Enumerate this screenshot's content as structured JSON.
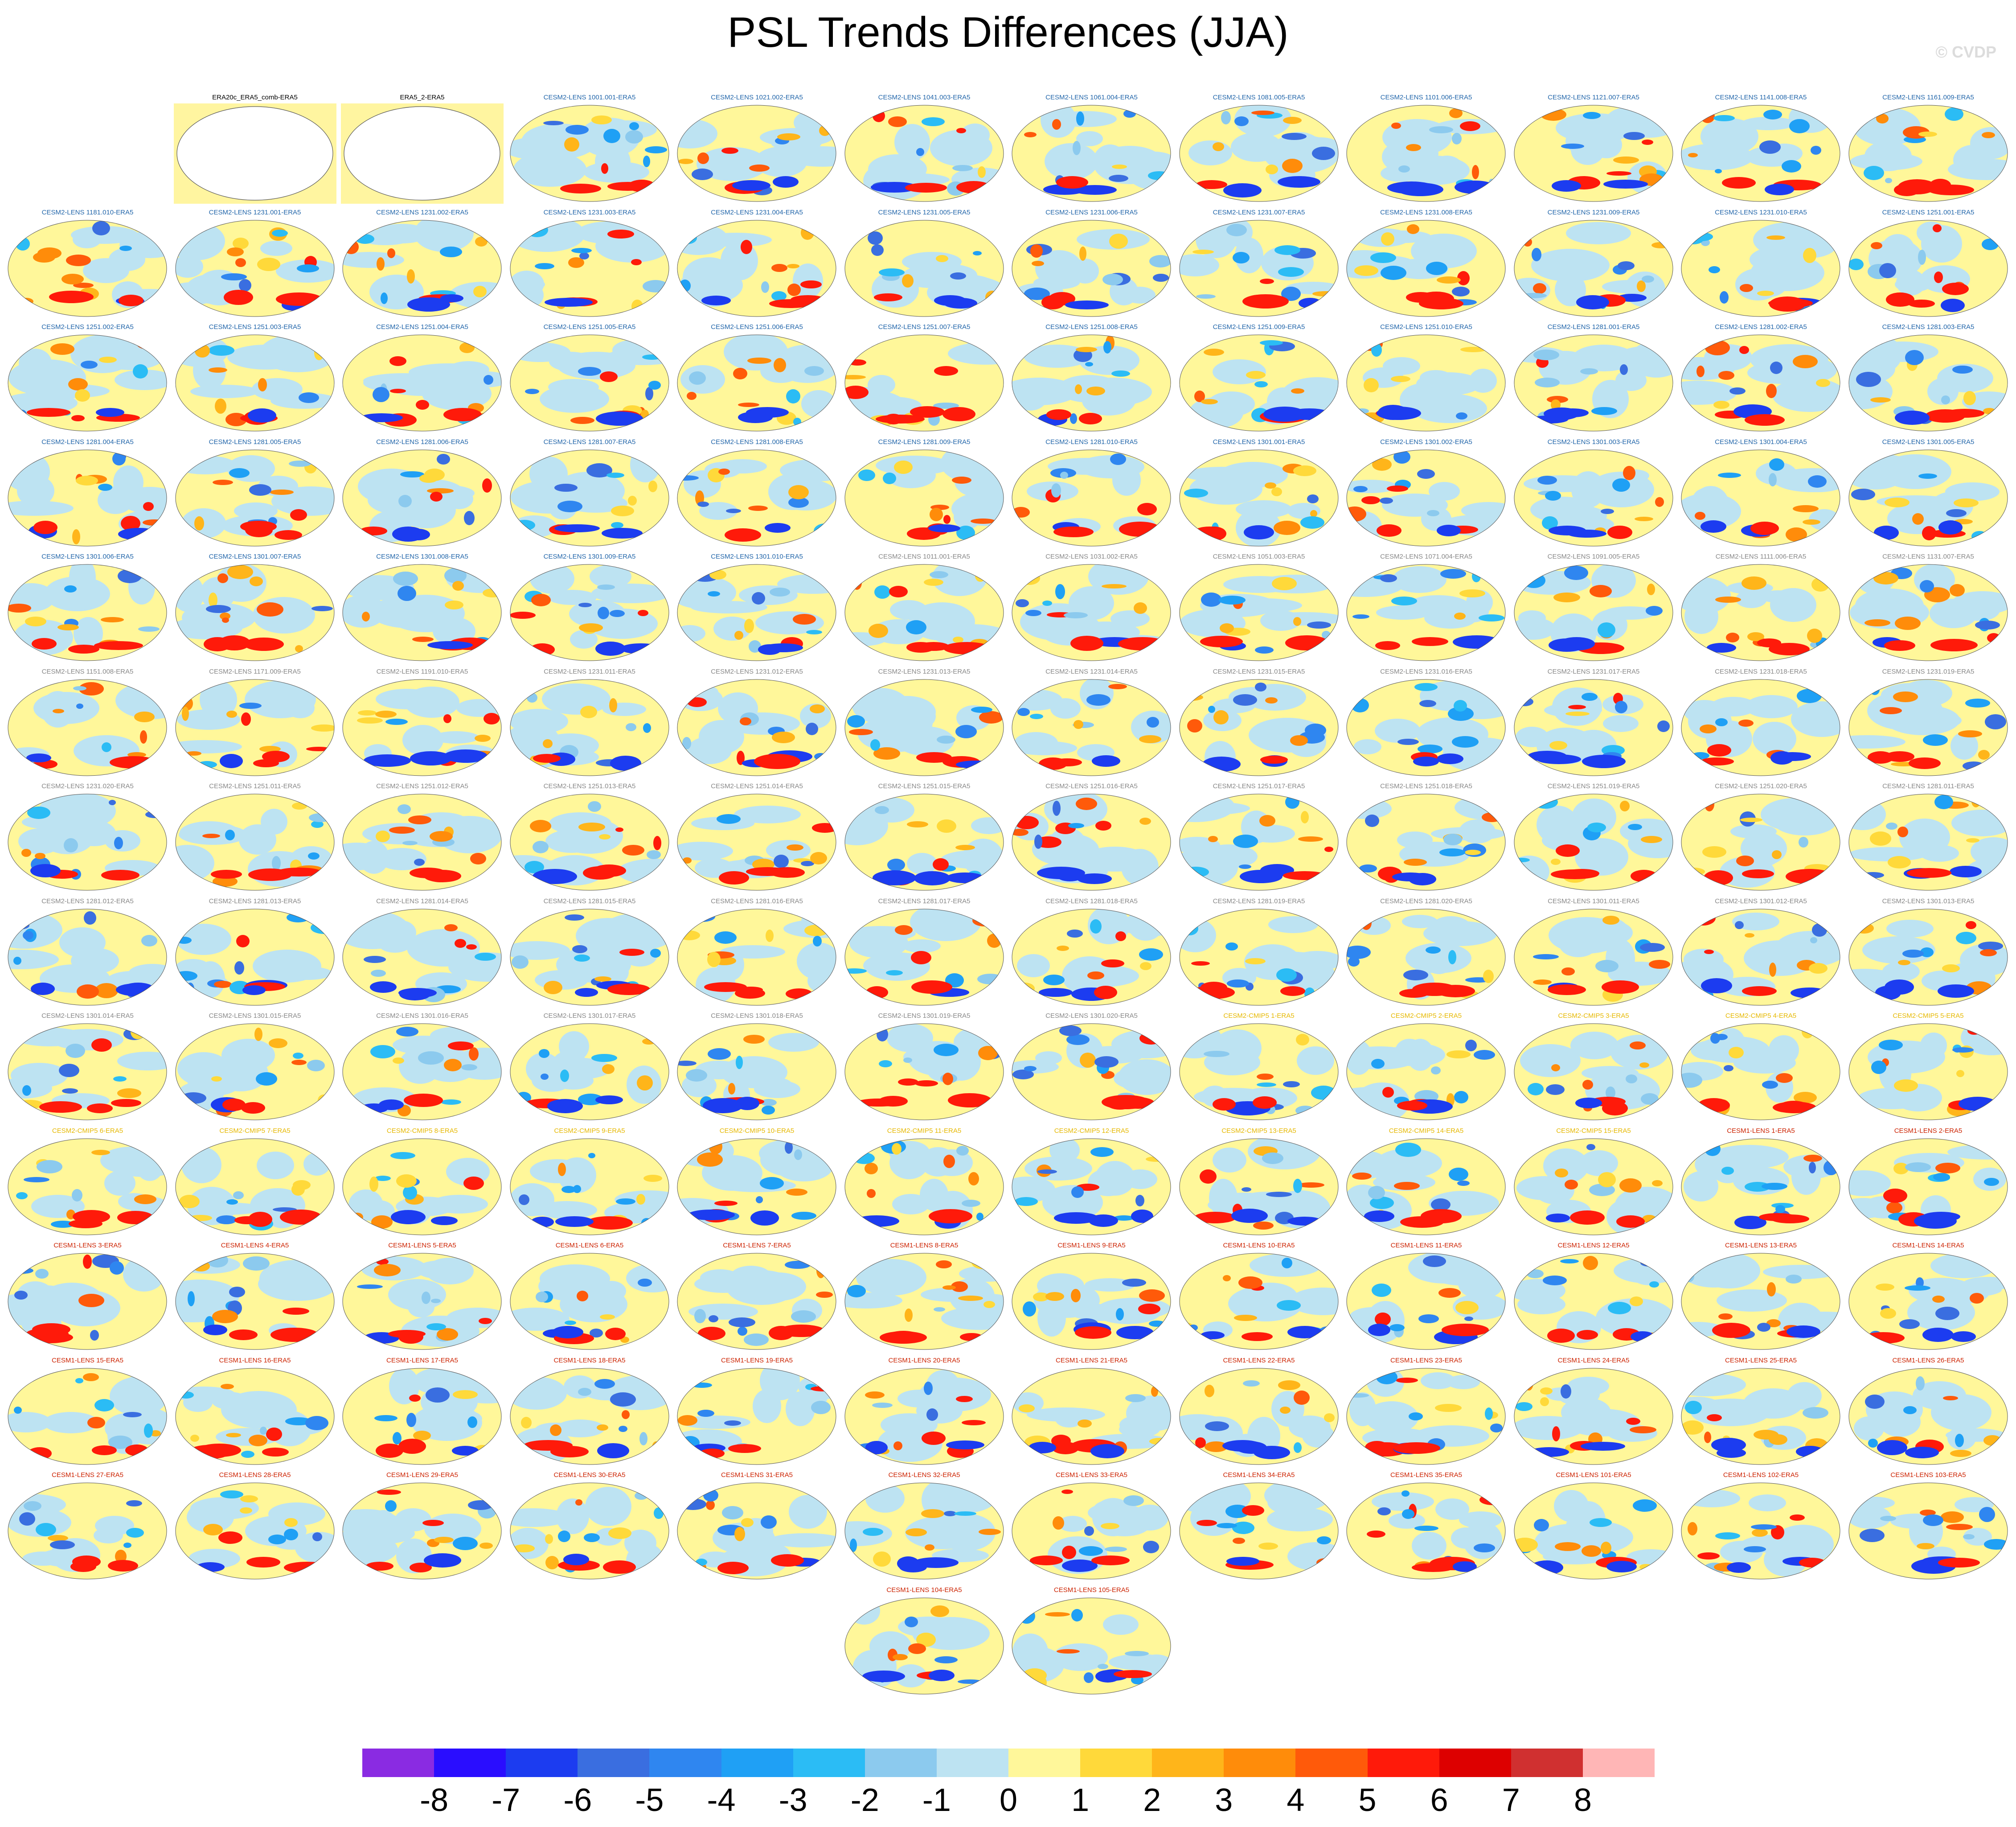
{
  "title": "PSL Trends Differences (JJA)",
  "copyright": "© CVDP",
  "colors": {
    "title_blue": "#2266aa",
    "title_gray": "#888888",
    "title_gold": "#e6b800",
    "title_red": "#cc2200",
    "title_black": "#000000",
    "obs_fill": "#fff5a0"
  },
  "panels": [
    {
      "label": "ERA20c_ERA5_comb-ERA5",
      "type": "obs",
      "color": "title_black"
    },
    {
      "label": "ERA5_2-ERA5",
      "type": "obs",
      "color": "title_black"
    },
    {
      "label": "CESM2-LENS 1001.001-ERA5",
      "type": "model",
      "color": "title_blue"
    },
    {
      "label": "CESM2-LENS 1021.002-ERA5",
      "type": "model",
      "color": "title_blue"
    },
    {
      "label": "CESM2-LENS 1041.003-ERA5",
      "type": "model",
      "color": "title_blue"
    },
    {
      "label": "CESM2-LENS 1061.004-ERA5",
      "type": "model",
      "color": "title_blue"
    },
    {
      "label": "CESM2-LENS 1081.005-ERA5",
      "type": "model",
      "color": "title_blue"
    },
    {
      "label": "CESM2-LENS 1101.006-ERA5",
      "type": "model",
      "color": "title_blue"
    },
    {
      "label": "CESM2-LENS 1121.007-ERA5",
      "type": "model",
      "color": "title_blue"
    },
    {
      "label": "CESM2-LENS 1141.008-ERA5",
      "type": "model",
      "color": "title_blue"
    },
    {
      "label": "CESM2-LENS 1161.009-ERA5",
      "type": "model",
      "color": "title_blue"
    },
    {
      "label": "CESM2-LENS 1181.010-ERA5",
      "type": "model",
      "color": "title_blue"
    },
    {
      "label": "CESM2-LENS 1231.001-ERA5",
      "type": "model",
      "color": "title_blue"
    },
    {
      "label": "CESM2-LENS 1231.002-ERA5",
      "type": "model",
      "color": "title_blue"
    },
    {
      "label": "CESM2-LENS 1231.003-ERA5",
      "type": "model",
      "color": "title_blue"
    },
    {
      "label": "CESM2-LENS 1231.004-ERA5",
      "type": "model",
      "color": "title_blue"
    },
    {
      "label": "CESM2-LENS 1231.005-ERA5",
      "type": "model",
      "color": "title_blue"
    },
    {
      "label": "CESM2-LENS 1231.006-ERA5",
      "type": "model",
      "color": "title_blue"
    },
    {
      "label": "CESM2-LENS 1231.007-ERA5",
      "type": "model",
      "color": "title_blue"
    },
    {
      "label": "CESM2-LENS 1231.008-ERA5",
      "type": "model",
      "color": "title_blue"
    },
    {
      "label": "CESM2-LENS 1231.009-ERA5",
      "type": "model",
      "color": "title_blue"
    },
    {
      "label": "CESM2-LENS 1231.010-ERA5",
      "type": "model",
      "color": "title_blue"
    },
    {
      "label": "CESM2-LENS 1251.001-ERA5",
      "type": "model",
      "color": "title_blue"
    },
    {
      "label": "CESM2-LENS 1251.002-ERA5",
      "type": "model",
      "color": "title_blue"
    },
    {
      "label": "CESM2-LENS 1251.003-ERA5",
      "type": "model",
      "color": "title_blue"
    },
    {
      "label": "CESM2-LENS 1251.004-ERA5",
      "type": "model",
      "color": "title_blue"
    },
    {
      "label": "CESM2-LENS 1251.005-ERA5",
      "type": "model",
      "color": "title_blue"
    },
    {
      "label": "CESM2-LENS 1251.006-ERA5",
      "type": "model",
      "color": "title_blue"
    },
    {
      "label": "CESM2-LENS 1251.007-ERA5",
      "type": "model",
      "color": "title_blue"
    },
    {
      "label": "CESM2-LENS 1251.008-ERA5",
      "type": "model",
      "color": "title_blue"
    },
    {
      "label": "CESM2-LENS 1251.009-ERA5",
      "type": "model",
      "color": "title_blue"
    },
    {
      "label": "CESM2-LENS 1251.010-ERA5",
      "type": "model",
      "color": "title_blue"
    },
    {
      "label": "CESM2-LENS 1281.001-ERA5",
      "type": "model",
      "color": "title_blue"
    },
    {
      "label": "CESM2-LENS 1281.002-ERA5",
      "type": "model",
      "color": "title_blue"
    },
    {
      "label": "CESM2-LENS 1281.003-ERA5",
      "type": "model",
      "color": "title_blue"
    },
    {
      "label": "CESM2-LENS 1281.004-ERA5",
      "type": "model",
      "color": "title_blue"
    },
    {
      "label": "CESM2-LENS 1281.005-ERA5",
      "type": "model",
      "color": "title_blue"
    },
    {
      "label": "CESM2-LENS 1281.006-ERA5",
      "type": "model",
      "color": "title_blue"
    },
    {
      "label": "CESM2-LENS 1281.007-ERA5",
      "type": "model",
      "color": "title_blue"
    },
    {
      "label": "CESM2-LENS 1281.008-ERA5",
      "type": "model",
      "color": "title_blue"
    },
    {
      "label": "CESM2-LENS 1281.009-ERA5",
      "type": "model",
      "color": "title_blue"
    },
    {
      "label": "CESM2-LENS 1281.010-ERA5",
      "type": "model",
      "color": "title_blue"
    },
    {
      "label": "CESM2-LENS 1301.001-ERA5",
      "type": "model",
      "color": "title_blue"
    },
    {
      "label": "CESM2-LENS 1301.002-ERA5",
      "type": "model",
      "color": "title_blue"
    },
    {
      "label": "CESM2-LENS 1301.003-ERA5",
      "type": "model",
      "color": "title_blue"
    },
    {
      "label": "CESM2-LENS 1301.004-ERA5",
      "type": "model",
      "color": "title_blue"
    },
    {
      "label": "CESM2-LENS 1301.005-ERA5",
      "type": "model",
      "color": "title_blue"
    },
    {
      "label": "CESM2-LENS 1301.006-ERA5",
      "type": "model",
      "color": "title_blue"
    },
    {
      "label": "CESM2-LENS 1301.007-ERA5",
      "type": "model",
      "color": "title_blue"
    },
    {
      "label": "CESM2-LENS 1301.008-ERA5",
      "type": "model",
      "color": "title_blue"
    },
    {
      "label": "CESM2-LENS 1301.009-ERA5",
      "type": "model",
      "color": "title_blue"
    },
    {
      "label": "CESM2-LENS 1301.010-ERA5",
      "type": "model",
      "color": "title_blue"
    },
    {
      "label": "CESM2-LENS 1011.001-ERA5",
      "type": "model",
      "color": "title_gray"
    },
    {
      "label": "CESM2-LENS 1031.002-ERA5",
      "type": "model",
      "color": "title_gray"
    },
    {
      "label": "CESM2-LENS 1051.003-ERA5",
      "type": "model",
      "color": "title_gray"
    },
    {
      "label": "CESM2-LENS 1071.004-ERA5",
      "type": "model",
      "color": "title_gray"
    },
    {
      "label": "CESM2-LENS 1091.005-ERA5",
      "type": "model",
      "color": "title_gray"
    },
    {
      "label": "CESM2-LENS 1111.006-ERA5",
      "type": "model",
      "color": "title_gray"
    },
    {
      "label": "CESM2-LENS 1131.007-ERA5",
      "type": "model",
      "color": "title_gray"
    },
    {
      "label": "CESM2-LENS 1151.008-ERA5",
      "type": "model",
      "color": "title_gray"
    },
    {
      "label": "CESM2-LENS 1171.009-ERA5",
      "type": "model",
      "color": "title_gray"
    },
    {
      "label": "CESM2-LENS 1191.010-ERA5",
      "type": "model",
      "color": "title_gray"
    },
    {
      "label": "CESM2-LENS 1231.011-ERA5",
      "type": "model",
      "color": "title_gray"
    },
    {
      "label": "CESM2-LENS 1231.012-ERA5",
      "type": "model",
      "color": "title_gray"
    },
    {
      "label": "CESM2-LENS 1231.013-ERA5",
      "type": "model",
      "color": "title_gray"
    },
    {
      "label": "CESM2-LENS 1231.014-ERA5",
      "type": "model",
      "color": "title_gray"
    },
    {
      "label": "CESM2-LENS 1231.015-ERA5",
      "type": "model",
      "color": "title_gray"
    },
    {
      "label": "CESM2-LENS 1231.016-ERA5",
      "type": "model",
      "color": "title_gray"
    },
    {
      "label": "CESM2-LENS 1231.017-ERA5",
      "type": "model",
      "color": "title_gray"
    },
    {
      "label": "CESM2-LENS 1231.018-ERA5",
      "type": "model",
      "color": "title_gray"
    },
    {
      "label": "CESM2-LENS 1231.019-ERA5",
      "type": "model",
      "color": "title_gray"
    },
    {
      "label": "CESM2-LENS 1231.020-ERA5",
      "type": "model",
      "color": "title_gray"
    },
    {
      "label": "CESM2-LENS 1251.011-ERA5",
      "type": "model",
      "color": "title_gray"
    },
    {
      "label": "CESM2-LENS 1251.012-ERA5",
      "type": "model",
      "color": "title_gray"
    },
    {
      "label": "CESM2-LENS 1251.013-ERA5",
      "type": "model",
      "color": "title_gray"
    },
    {
      "label": "CESM2-LENS 1251.014-ERA5",
      "type": "model",
      "color": "title_gray"
    },
    {
      "label": "CESM2-LENS 1251.015-ERA5",
      "type": "model",
      "color": "title_gray"
    },
    {
      "label": "CESM2-LENS 1251.016-ERA5",
      "type": "model",
      "color": "title_gray"
    },
    {
      "label": "CESM2-LENS 1251.017-ERA5",
      "type": "model",
      "color": "title_gray"
    },
    {
      "label": "CESM2-LENS 1251.018-ERA5",
      "type": "model",
      "color": "title_gray"
    },
    {
      "label": "CESM2-LENS 1251.019-ERA5",
      "type": "model",
      "color": "title_gray"
    },
    {
      "label": "CESM2-LENS 1251.020-ERA5",
      "type": "model",
      "color": "title_gray"
    },
    {
      "label": "CESM2-LENS 1281.011-ERA5",
      "type": "model",
      "color": "title_gray"
    },
    {
      "label": "CESM2-LENS 1281.012-ERA5",
      "type": "model",
      "color": "title_gray"
    },
    {
      "label": "CESM2-LENS 1281.013-ERA5",
      "type": "model",
      "color": "title_gray"
    },
    {
      "label": "CESM2-LENS 1281.014-ERA5",
      "type": "model",
      "color": "title_gray"
    },
    {
      "label": "CESM2-LENS 1281.015-ERA5",
      "type": "model",
      "color": "title_gray"
    },
    {
      "label": "CESM2-LENS 1281.016-ERA5",
      "type": "model",
      "color": "title_gray"
    },
    {
      "label": "CESM2-LENS 1281.017-ERA5",
      "type": "model",
      "color": "title_gray"
    },
    {
      "label": "CESM2-LENS 1281.018-ERA5",
      "type": "model",
      "color": "title_gray"
    },
    {
      "label": "CESM2-LENS 1281.019-ERA5",
      "type": "model",
      "color": "title_gray"
    },
    {
      "label": "CESM2-LENS 1281.020-ERA5",
      "type": "model",
      "color": "title_gray"
    },
    {
      "label": "CESM2-LENS 1301.011-ERA5",
      "type": "model",
      "color": "title_gray"
    },
    {
      "label": "CESM2-LENS 1301.012-ERA5",
      "type": "model",
      "color": "title_gray"
    },
    {
      "label": "CESM2-LENS 1301.013-ERA5",
      "type": "model",
      "color": "title_gray"
    },
    {
      "label": "CESM2-LENS 1301.014-ERA5",
      "type": "model",
      "color": "title_gray"
    },
    {
      "label": "CESM2-LENS 1301.015-ERA5",
      "type": "model",
      "color": "title_gray"
    },
    {
      "label": "CESM2-LENS 1301.016-ERA5",
      "type": "model",
      "color": "title_gray"
    },
    {
      "label": "CESM2-LENS 1301.017-ERA5",
      "type": "model",
      "color": "title_gray"
    },
    {
      "label": "CESM2-LENS 1301.018-ERA5",
      "type": "model",
      "color": "title_gray"
    },
    {
      "label": "CESM2-LENS 1301.019-ERA5",
      "type": "model",
      "color": "title_gray"
    },
    {
      "label": "CESM2-LENS 1301.020-ERA5",
      "type": "model",
      "color": "title_gray"
    },
    {
      "label": "CESM2-CMIP5 1-ERA5",
      "type": "model",
      "color": "title_gold"
    },
    {
      "label": "CESM2-CMIP5 2-ERA5",
      "type": "model",
      "color": "title_gold"
    },
    {
      "label": "CESM2-CMIP5 3-ERA5",
      "type": "model",
      "color": "title_gold"
    },
    {
      "label": "CESM2-CMIP5 4-ERA5",
      "type": "model",
      "color": "title_gold"
    },
    {
      "label": "CESM2-CMIP5 5-ERA5",
      "type": "model",
      "color": "title_gold"
    },
    {
      "label": "CESM2-CMIP5 6-ERA5",
      "type": "model",
      "color": "title_gold"
    },
    {
      "label": "CESM2-CMIP5 7-ERA5",
      "type": "model",
      "color": "title_gold"
    },
    {
      "label": "CESM2-CMIP5 8-ERA5",
      "type": "model",
      "color": "title_gold"
    },
    {
      "label": "CESM2-CMIP5 9-ERA5",
      "type": "model",
      "color": "title_gold"
    },
    {
      "label": "CESM2-CMIP5 10-ERA5",
      "type": "model",
      "color": "title_gold"
    },
    {
      "label": "CESM2-CMIP5 11-ERA5",
      "type": "model",
      "color": "title_gold"
    },
    {
      "label": "CESM2-CMIP5 12-ERA5",
      "type": "model",
      "color": "title_gold"
    },
    {
      "label": "CESM2-CMIP5 13-ERA5",
      "type": "model",
      "color": "title_gold"
    },
    {
      "label": "CESM2-CMIP5 14-ERA5",
      "type": "model",
      "color": "title_gold"
    },
    {
      "label": "CESM2-CMIP5 15-ERA5",
      "type": "model",
      "color": "title_gold"
    },
    {
      "label": "CESM1-LENS 1-ERA5",
      "type": "model",
      "color": "title_red"
    },
    {
      "label": "CESM1-LENS 2-ERA5",
      "type": "model",
      "color": "title_red"
    },
    {
      "label": "CESM1-LENS 3-ERA5",
      "type": "model",
      "color": "title_red"
    },
    {
      "label": "CESM1-LENS 4-ERA5",
      "type": "model",
      "color": "title_red"
    },
    {
      "label": "CESM1-LENS 5-ERA5",
      "type": "model",
      "color": "title_red"
    },
    {
      "label": "CESM1-LENS 6-ERA5",
      "type": "model",
      "color": "title_red"
    },
    {
      "label": "CESM1-LENS 7-ERA5",
      "type": "model",
      "color": "title_red"
    },
    {
      "label": "CESM1-LENS 8-ERA5",
      "type": "model",
      "color": "title_red"
    },
    {
      "label": "CESM1-LENS 9-ERA5",
      "type": "model",
      "color": "title_red"
    },
    {
      "label": "CESM1-LENS 10-ERA5",
      "type": "model",
      "color": "title_red"
    },
    {
      "label": "CESM1-LENS 11-ERA5",
      "type": "model",
      "color": "title_red"
    },
    {
      "label": "CESM1-LENS 12-ERA5",
      "type": "model",
      "color": "title_red"
    },
    {
      "label": "CESM1-LENS 13-ERA5",
      "type": "model",
      "color": "title_red"
    },
    {
      "label": "CESM1-LENS 14-ERA5",
      "type": "model",
      "color": "title_red"
    },
    {
      "label": "CESM1-LENS 15-ERA5",
      "type": "model",
      "color": "title_red"
    },
    {
      "label": "CESM1-LENS 16-ERA5",
      "type": "model",
      "color": "title_red"
    },
    {
      "label": "CESM1-LENS 17-ERA5",
      "type": "model",
      "color": "title_red"
    },
    {
      "label": "CESM1-LENS 18-ERA5",
      "type": "model",
      "color": "title_red"
    },
    {
      "label": "CESM1-LENS 19-ERA5",
      "type": "model",
      "color": "title_red"
    },
    {
      "label": "CESM1-LENS 20-ERA5",
      "type": "model",
      "color": "title_red"
    },
    {
      "label": "CESM1-LENS 21-ERA5",
      "type": "model",
      "color": "title_red"
    },
    {
      "label": "CESM1-LENS 22-ERA5",
      "type": "model",
      "color": "title_red"
    },
    {
      "label": "CESM1-LENS 23-ERA5",
      "type": "model",
      "color": "title_red"
    },
    {
      "label": "CESM1-LENS 24-ERA5",
      "type": "model",
      "color": "title_red"
    },
    {
      "label": "CESM1-LENS 25-ERA5",
      "type": "model",
      "color": "title_red"
    },
    {
      "label": "CESM1-LENS 26-ERA5",
      "type": "model",
      "color": "title_red"
    },
    {
      "label": "CESM1-LENS 27-ERA5",
      "type": "model",
      "color": "title_red"
    },
    {
      "label": "CESM1-LENS 28-ERA5",
      "type": "model",
      "color": "title_red"
    },
    {
      "label": "CESM1-LENS 29-ERA5",
      "type": "model",
      "color": "title_red"
    },
    {
      "label": "CESM1-LENS 30-ERA5",
      "type": "model",
      "color": "title_red"
    },
    {
      "label": "CESM1-LENS 31-ERA5",
      "type": "model",
      "color": "title_red"
    },
    {
      "label": "CESM1-LENS 32-ERA5",
      "type": "model",
      "color": "title_red"
    },
    {
      "label": "CESM1-LENS 33-ERA5",
      "type": "model",
      "color": "title_red"
    },
    {
      "label": "CESM1-LENS 34-ERA5",
      "type": "model",
      "color": "title_red"
    },
    {
      "label": "CESM1-LENS 35-ERA5",
      "type": "model",
      "color": "title_red"
    },
    {
      "label": "CESM1-LENS 101-ERA5",
      "type": "model",
      "color": "title_red"
    },
    {
      "label": "CESM1-LENS 102-ERA5",
      "type": "model",
      "color": "title_red"
    },
    {
      "label": "CESM1-LENS 103-ERA5",
      "type": "model",
      "color": "title_red"
    },
    {
      "label": "CESM1-LENS 104-ERA5",
      "type": "model",
      "color": "title_red"
    },
    {
      "label": "CESM1-LENS 105-ERA5",
      "type": "model",
      "color": "title_red"
    }
  ],
  "colorbar": {
    "colors": [
      "#8a2be2",
      "#2a0dff",
      "#1c3cf0",
      "#3a6ee0",
      "#2f86f0",
      "#1fa0f5",
      "#2bbcf5",
      "#8ccaee",
      "#bde3f2",
      "#fff79a",
      "#ffd93a",
      "#ffb51a",
      "#ff8c0a",
      "#ff5a0a",
      "#ff1a0a",
      "#dd0000",
      "#d03030",
      "#ffb6b6"
    ],
    "labels": [
      "-8",
      "-7",
      "-6",
      "-5",
      "-4",
      "-3",
      "-2",
      "-1",
      "0",
      "1",
      "2",
      "3",
      "4",
      "5",
      "6",
      "7",
      "8"
    ]
  }
}
